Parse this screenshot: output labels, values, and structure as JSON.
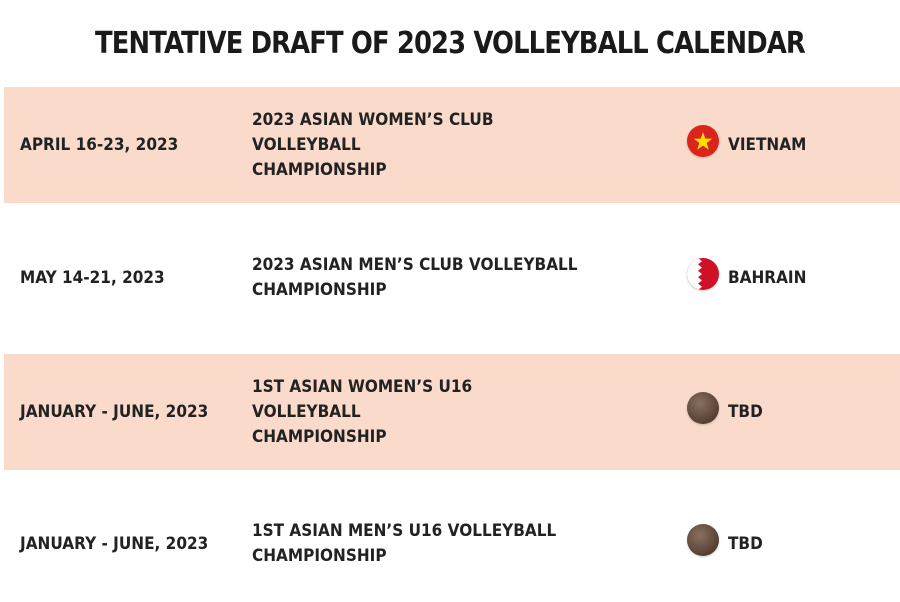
{
  "title": "TENTATIVE DRAFT OF 2023 VOLLEYBALL CALENDAR",
  "colors": {
    "shaded_row": "#fadbcb",
    "plain_row": "#ffffff",
    "text": "#222222",
    "vietnam_red": "#da251d",
    "vietnam_star": "#ffde00",
    "bahrain_red": "#ce1126",
    "tbd_brown": "#6b5444"
  },
  "rows": [
    {
      "date": "APRIL 16-23, 2023",
      "event_line1": "2023 ASIAN WOMEN’S CLUB VOLLEYBALL",
      "event_line2": "CHAMPIONSHIP",
      "flag_icon": "vietnam-flag-icon",
      "country": "VIETNAM"
    },
    {
      "date": "MAY 14-21, 2023",
      "event_line1": "2023 ASIAN MEN’S CLUB VOLLEYBALL",
      "event_line2": "CHAMPIONSHIP",
      "flag_icon": "bahrain-flag-icon",
      "country": "BAHRAIN"
    },
    {
      "date": "JANUARY - JUNE, 2023",
      "event_line1": "1ST ASIAN WOMEN’S U16 VOLLEYBALL",
      "event_line2": "CHAMPIONSHIP",
      "flag_icon": "tbd-circle-icon",
      "country": "TBD"
    },
    {
      "date": "JANUARY - JUNE, 2023",
      "event_line1": "1ST ASIAN MEN’S U16 VOLLEYBALL",
      "event_line2": "CHAMPIONSHIP",
      "flag_icon": "tbd-circle-icon",
      "country": "TBD"
    }
  ]
}
